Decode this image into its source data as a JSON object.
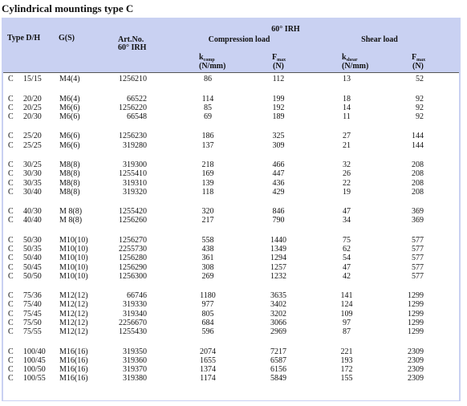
{
  "title": "Cylindrical mountings type C",
  "table": {
    "header": {
      "type": "Type D/H",
      "gs": "G(S)",
      "artno": "Art.No.",
      "artno_sub": "60° IRH",
      "group": "60° IRH",
      "compression": "Compression load",
      "shear": "Shear load",
      "kcomp": "k",
      "kcomp_sub": "comp",
      "kcomp_unit": "(N/mm)",
      "fmax1": "F",
      "fmax1_sub": "max",
      "fmax1_unit": "(N)",
      "kshear": "k",
      "kshear_sub": "shear",
      "kshear_unit": "(N/mm)",
      "fmax2": "F",
      "fmax2_sub": "max",
      "fmax2_unit": "(N)"
    },
    "groups": [
      [
        [
          "C",
          "15/15",
          "M4(4)",
          "1256210",
          "86",
          "112",
          "13",
          "52"
        ]
      ],
      [
        [
          "C",
          "20/20",
          "M6(4)",
          "66522",
          "114",
          "199",
          "18",
          "92"
        ],
        [
          "C",
          "20/25",
          "M6(6)",
          "1256220",
          "85",
          "192",
          "14",
          "92"
        ],
        [
          "C",
          "20/30",
          "M6(6)",
          "66548",
          "69",
          "189",
          "11",
          "92"
        ]
      ],
      [
        [
          "C",
          "25/20",
          "M6(6)",
          "1256230",
          "186",
          "325",
          "27",
          "144"
        ],
        [
          "C",
          "25/25",
          "M6(6)",
          "319280",
          "137",
          "309",
          "21",
          "144"
        ]
      ],
      [
        [
          "C",
          "30/25",
          "M8(8)",
          "319300",
          "218",
          "466",
          "32",
          "208"
        ],
        [
          "C",
          "30/30",
          "M8(8)",
          "1255410",
          "169",
          "447",
          "26",
          "208"
        ],
        [
          "C",
          "30/35",
          "M8(8)",
          "319310",
          "139",
          "436",
          "22",
          "208"
        ],
        [
          "C",
          "30/40",
          "M8(8)",
          "319320",
          "118",
          "429",
          "19",
          "208"
        ]
      ],
      [
        [
          "C",
          "40/30",
          "M 8(8)",
          "1255420",
          "320",
          "846",
          "47",
          "369"
        ],
        [
          "C",
          "40/40",
          "M 8(8)",
          "1256260",
          "217",
          "790",
          "34",
          "369"
        ]
      ],
      [
        [
          "C",
          "50/30",
          "M10(10)",
          "1256270",
          "558",
          "1440",
          "75",
          "577"
        ],
        [
          "C",
          "50/35",
          "M10(10)",
          "2255730",
          "438",
          "1349",
          "62",
          "577"
        ],
        [
          "C",
          "50/40",
          "M10(10)",
          "1256280",
          "361",
          "1294",
          "54",
          "577"
        ],
        [
          "C",
          "50/45",
          "M10(10)",
          "1256290",
          "308",
          "1257",
          "47",
          "577"
        ],
        [
          "C",
          "50/50",
          "M10(10)",
          "1256300",
          "269",
          "1232",
          "42",
          "577"
        ]
      ],
      [
        [
          "C",
          "75/36",
          "M12(12)",
          "66746",
          "1180",
          "3635",
          "141",
          "1299"
        ],
        [
          "C",
          "75/40",
          "M12(12)",
          "319330",
          "977",
          "3402",
          "124",
          "1299"
        ],
        [
          "C",
          "75/45",
          "M12(12)",
          "319340",
          "805",
          "3202",
          "109",
          "1299"
        ],
        [
          "C",
          "75/50",
          "M12(12)",
          "2256670",
          "684",
          "3066",
          "97",
          "1299"
        ],
        [
          "C",
          "75/55",
          "M12(12)",
          "1255430",
          "596",
          "2969",
          "87",
          "1299"
        ]
      ],
      [
        [
          "C",
          "100/40",
          "M16(16)",
          "319350",
          "2074",
          "7217",
          "221",
          "2309"
        ],
        [
          "C",
          "100/45",
          "M16(16)",
          "319360",
          "1655",
          "6587",
          "193",
          "2309"
        ],
        [
          "C",
          "100/50",
          "M16(16)",
          "319370",
          "1374",
          "6156",
          "172",
          "2309"
        ],
        [
          "C",
          "100/55",
          "M16(16)",
          "319380",
          "1174",
          "5849",
          "155",
          "2309"
        ]
      ]
    ]
  }
}
